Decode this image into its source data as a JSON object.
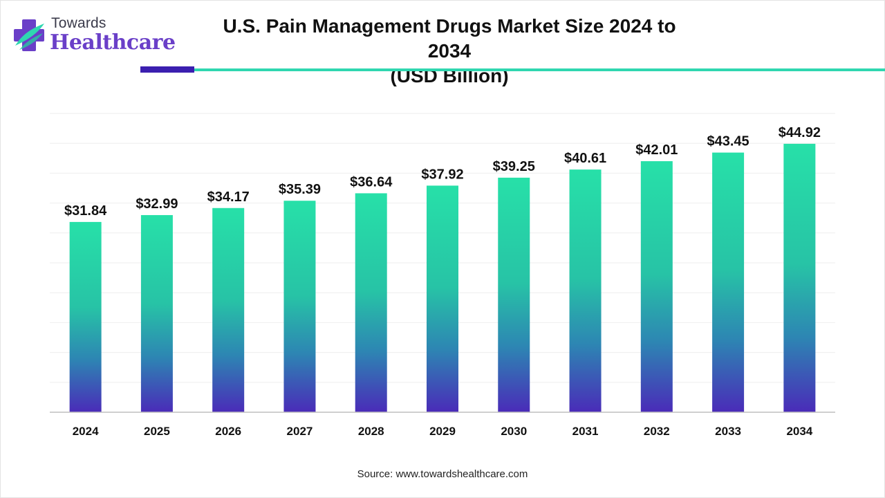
{
  "brand": {
    "line1": "Towards",
    "line2": "Healthcare",
    "icon": "medical-cross-logo-icon",
    "colors": {
      "purple": "#6a3fc8",
      "teal": "#2fd7b0",
      "gray": "#3a3a4a"
    }
  },
  "header": {
    "title_line1": "U.S. Pain Management Drugs Market Size 2024 to 2034",
    "title_line2": "(USD Billion)"
  },
  "footer": {
    "source": "Source: www.towardshealthcare.com"
  },
  "chart_data": {
    "type": "bar",
    "title": "U.S. Pain Management Drugs Market Size 2024 to 2034 (USD Billion)",
    "xlabel": "",
    "ylabel": "",
    "categories": [
      "2024",
      "2025",
      "2026",
      "2027",
      "2028",
      "2029",
      "2030",
      "2031",
      "2032",
      "2033",
      "2034"
    ],
    "values": [
      31.84,
      32.99,
      34.17,
      35.39,
      36.64,
      37.92,
      39.25,
      40.61,
      42.01,
      43.45,
      44.92
    ],
    "data_labels": [
      "$31.84",
      "$32.99",
      "$34.17",
      "$35.39",
      "$36.64",
      "$37.92",
      "$39.25",
      "$40.61",
      "$42.01",
      "$43.45",
      "$44.92"
    ],
    "ylim": [
      0,
      50
    ],
    "grid": true,
    "legend": "none",
    "colors": {
      "bar_top": "#27e0a8",
      "bar_mid": "#2b8fb2",
      "bar_bottom": "#4a2bb8",
      "grid": "#eeeeee",
      "axis": "#bfbfbf"
    }
  }
}
